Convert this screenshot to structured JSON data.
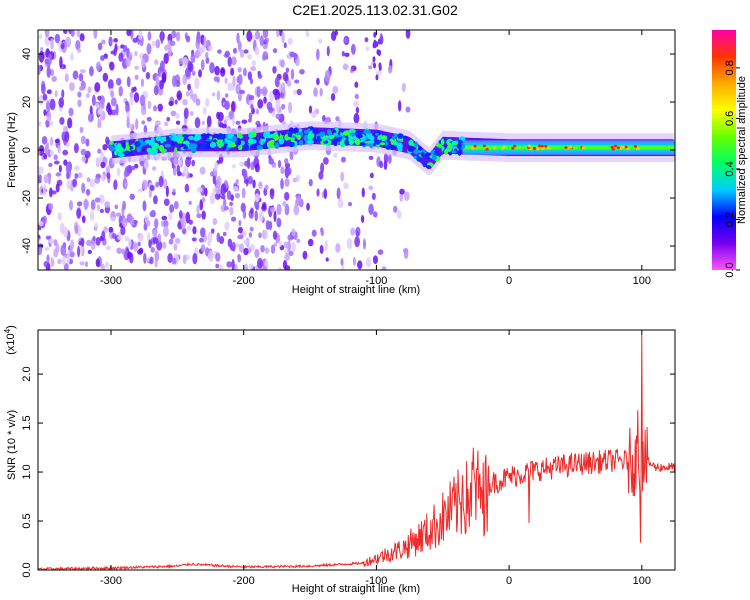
{
  "title": "C2E1.2025.113.02.31.G02",
  "chart_data": [
    {
      "type": "heatmap",
      "xlabel": "Height of straight line (km)",
      "ylabel": "Frequency (Hz)",
      "xlim": [
        -355,
        125
      ],
      "ylim": [
        -50,
        50
      ],
      "x_ticks": [
        -300,
        -200,
        -100,
        0,
        100
      ],
      "y_ticks": [
        -40,
        -20,
        0,
        20,
        40
      ],
      "colorbar": {
        "label": "Normalized spectral amplitude",
        "range": [
          0.0,
          0.95
        ],
        "ticks": [
          "0.0",
          "0.2",
          "0.4",
          "0.6",
          "0.8"
        ],
        "colors": [
          "#ff55ff",
          "#7700ee",
          "#0000ff",
          "#00ccff",
          "#00ff66",
          "#66ff00",
          "#ffff00",
          "#ffaa00",
          "#ff3300",
          "#ff00aa"
        ]
      },
      "band_center": [
        {
          "x": -300,
          "y": 0
        },
        {
          "x": -250,
          "y": 3
        },
        {
          "x": -200,
          "y": 3
        },
        {
          "x": -150,
          "y": 6
        },
        {
          "x": -100,
          "y": 5
        },
        {
          "x": -75,
          "y": 2
        },
        {
          "x": -60,
          "y": -5
        },
        {
          "x": -50,
          "y": 2
        },
        {
          "x": 0,
          "y": 1
        },
        {
          "x": 125,
          "y": 1
        }
      ]
    },
    {
      "type": "line",
      "xlabel": "Height of straight line (km)",
      "ylabel": "SNR (10 * v/v)",
      "exponent_label": "(x10",
      "exponent_sup": "4",
      "exponent_close": ")",
      "xlim": [
        -355,
        125
      ],
      "ylim": [
        0.0,
        2.45
      ],
      "x_ticks": [
        -300,
        -200,
        -100,
        0,
        100
      ],
      "y_ticks": [
        "0.0",
        "0.5",
        "1.0",
        "1.5",
        "2.0"
      ],
      "color": "#ee2b2b",
      "envelope": [
        {
          "x": -355,
          "y": 0.01
        },
        {
          "x": -300,
          "y": 0.02
        },
        {
          "x": -250,
          "y": 0.04
        },
        {
          "x": -240,
          "y": 0.06
        },
        {
          "x": -200,
          "y": 0.03
        },
        {
          "x": -150,
          "y": 0.04
        },
        {
          "x": -110,
          "y": 0.07
        },
        {
          "x": -80,
          "y": 0.22
        },
        {
          "x": -60,
          "y": 0.4
        },
        {
          "x": -40,
          "y": 0.65
        },
        {
          "x": -20,
          "y": 0.85
        },
        {
          "x": 0,
          "y": 0.95
        },
        {
          "x": 20,
          "y": 1.02
        },
        {
          "x": 50,
          "y": 1.08
        },
        {
          "x": 80,
          "y": 1.12
        },
        {
          "x": 95,
          "y": 1.1
        },
        {
          "x": 100,
          "y": 1.15
        },
        {
          "x": 110,
          "y": 1.05
        },
        {
          "x": 125,
          "y": 1.05
        }
      ],
      "spikes": [
        {
          "x": -35,
          "y": 0.97
        },
        {
          "x": -27,
          "y": 1.25
        },
        {
          "x": -16,
          "y": 0.95
        },
        {
          "x": 15,
          "y": 0.48
        },
        {
          "x": 97,
          "y": 1.63
        },
        {
          "x": 100,
          "y": 2.4
        },
        {
          "x": 99,
          "y": 0.28
        }
      ]
    }
  ]
}
